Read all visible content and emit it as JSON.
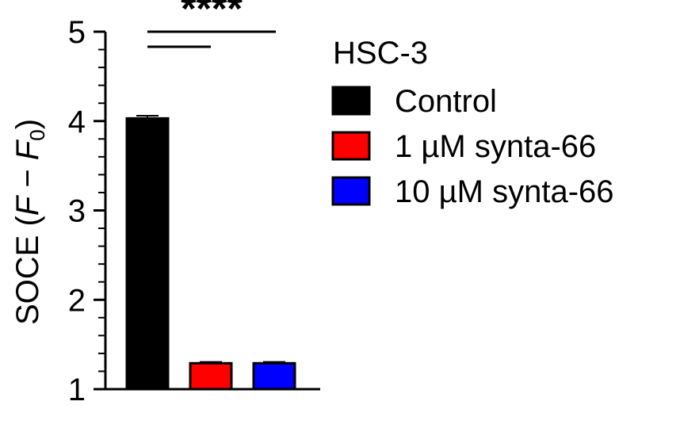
{
  "chart_data": {
    "type": "bar",
    "ylabel": {
      "prefix": "SOCE (",
      "F": "F",
      "minus": " − ",
      "F0": "F",
      "sub": "0",
      "suffix": ")"
    },
    "ylim": [
      1,
      5
    ],
    "yticks": [
      "1",
      "2",
      "3",
      "4",
      "5"
    ],
    "legend_title": "HSC-3",
    "series": [
      {
        "name": "Control",
        "value": 4.03,
        "error": 0.03,
        "color": "#000000"
      },
      {
        "name": "1 µM synta-66",
        "value": 1.29,
        "error": 0.015,
        "color": "#ff0000"
      },
      {
        "name": "10 µM synta-66",
        "value": 1.29,
        "error": 0.015,
        "color": "#0000ff"
      }
    ],
    "significance": "****",
    "legend_placement": "right",
    "grid": false
  }
}
